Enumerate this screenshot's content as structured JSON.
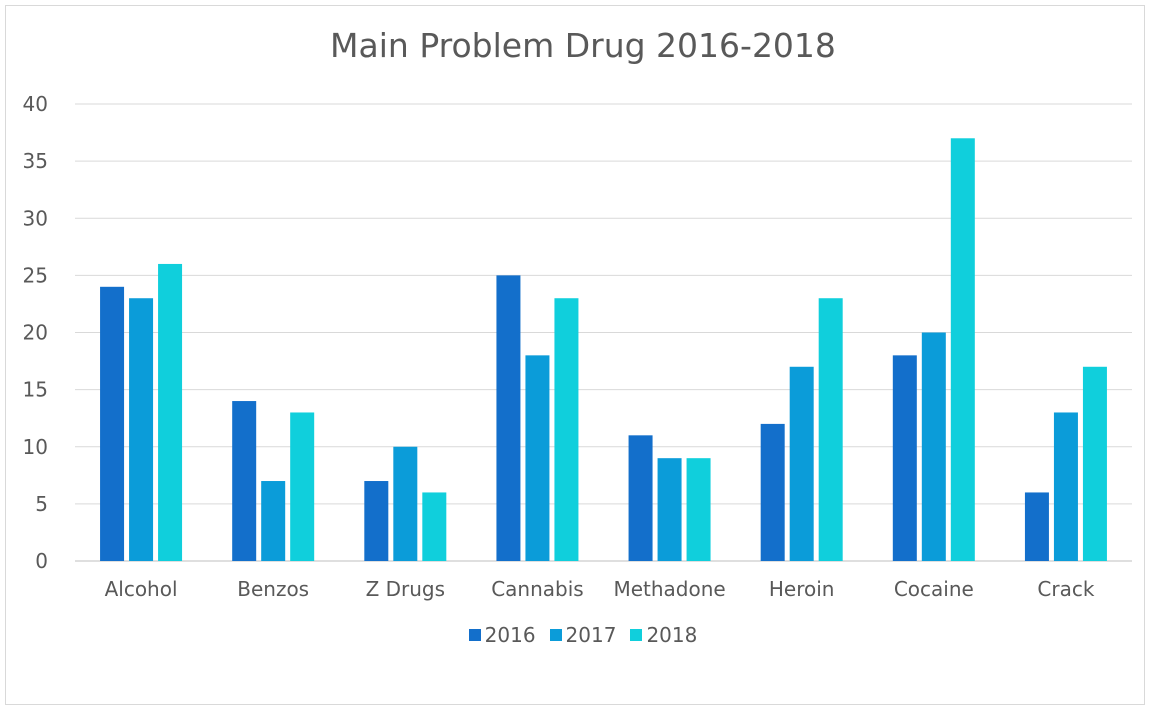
{
  "chart_data": {
    "type": "bar",
    "title": "Main Problem Drug 2016-2018",
    "xlabel": "",
    "ylabel": "",
    "ylim": [
      0,
      40
    ],
    "yticks": [
      "0",
      "5",
      "10",
      "15",
      "20",
      "25",
      "30",
      "35",
      "40"
    ],
    "categories": [
      "Alcohol",
      "Benzos",
      "Z Drugs",
      "Cannabis",
      "Methadone",
      "Heroin",
      "Cocaine",
      "Crack"
    ],
    "series": [
      {
        "name": "2016",
        "color": "#136fcb",
        "values": [
          24,
          14,
          7,
          25,
          11,
          12,
          18,
          6
        ]
      },
      {
        "name": "2017",
        "color": "#0b9cd9",
        "values": [
          23,
          7,
          10,
          18,
          9,
          17,
          20,
          13
        ]
      },
      {
        "name": "2018",
        "color": "#10cfdc",
        "values": [
          26,
          13,
          6,
          23,
          9,
          23,
          37,
          17
        ]
      }
    ],
    "grid": true,
    "legend_position": "bottom"
  }
}
